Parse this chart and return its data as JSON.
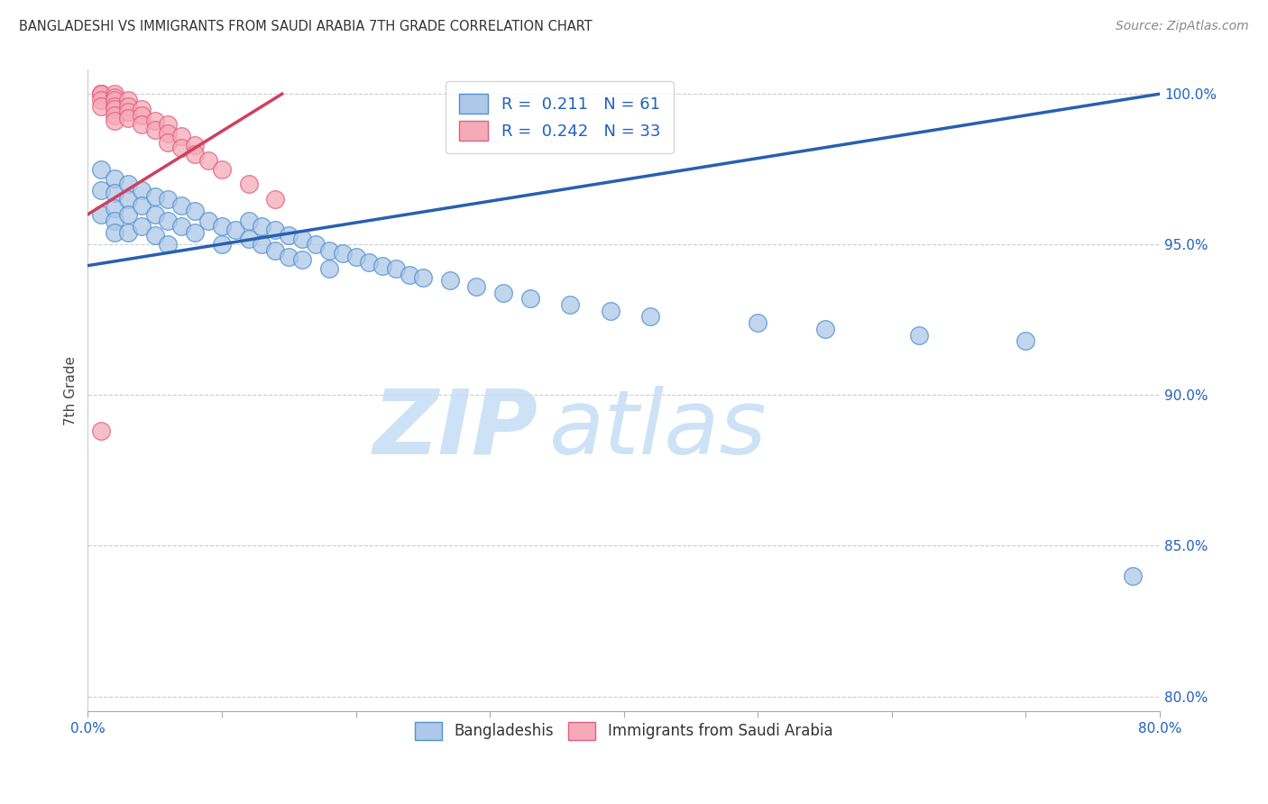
{
  "title": "BANGLADESHI VS IMMIGRANTS FROM SAUDI ARABIA 7TH GRADE CORRELATION CHART",
  "source": "Source: ZipAtlas.com",
  "ylabel": "7th Grade",
  "xlim": [
    0.0,
    0.8
  ],
  "ylim": [
    0.795,
    1.008
  ],
  "xticks": [
    0.0,
    0.1,
    0.2,
    0.3,
    0.4,
    0.5,
    0.6,
    0.7,
    0.8
  ],
  "xticklabels": [
    "0.0%",
    "",
    "",
    "",
    "",
    "",
    "",
    "",
    "80.0%"
  ],
  "yticks": [
    0.8,
    0.85,
    0.9,
    0.95,
    1.0
  ],
  "yticklabels": [
    "80.0%",
    "85.0%",
    "90.0%",
    "95.0%",
    "100.0%"
  ],
  "blue_R": "0.211",
  "blue_N": "61",
  "pink_R": "0.242",
  "pink_N": "33",
  "blue_color": "#adc8e8",
  "pink_color": "#f5aab8",
  "blue_edge_color": "#5090d0",
  "pink_edge_color": "#e06080",
  "blue_line_color": "#2860b0",
  "pink_line_color": "#d04060",
  "watermark_zip": "ZIP",
  "watermark_atlas": "atlas",
  "legend_label_blue": "Bangladeshis",
  "legend_label_pink": "Immigrants from Saudi Arabia",
  "blue_scatter_x": [
    0.01,
    0.01,
    0.01,
    0.02,
    0.02,
    0.02,
    0.02,
    0.02,
    0.03,
    0.03,
    0.03,
    0.03,
    0.04,
    0.04,
    0.04,
    0.05,
    0.05,
    0.05,
    0.06,
    0.06,
    0.06,
    0.07,
    0.07,
    0.08,
    0.08,
    0.09,
    0.1,
    0.1,
    0.11,
    0.12,
    0.12,
    0.13,
    0.13,
    0.14,
    0.14,
    0.15,
    0.15,
    0.16,
    0.16,
    0.17,
    0.18,
    0.18,
    0.19,
    0.2,
    0.21,
    0.22,
    0.23,
    0.24,
    0.25,
    0.27,
    0.29,
    0.31,
    0.33,
    0.36,
    0.39,
    0.42,
    0.5,
    0.55,
    0.62,
    0.7,
    0.78
  ],
  "blue_scatter_y": [
    0.975,
    0.968,
    0.96,
    0.972,
    0.967,
    0.962,
    0.958,
    0.954,
    0.97,
    0.965,
    0.96,
    0.954,
    0.968,
    0.963,
    0.956,
    0.966,
    0.96,
    0.953,
    0.965,
    0.958,
    0.95,
    0.963,
    0.956,
    0.961,
    0.954,
    0.958,
    0.956,
    0.95,
    0.955,
    0.958,
    0.952,
    0.956,
    0.95,
    0.955,
    0.948,
    0.953,
    0.946,
    0.952,
    0.945,
    0.95,
    0.948,
    0.942,
    0.947,
    0.946,
    0.944,
    0.943,
    0.942,
    0.94,
    0.939,
    0.938,
    0.936,
    0.934,
    0.932,
    0.93,
    0.928,
    0.926,
    0.924,
    0.922,
    0.92,
    0.918,
    0.84
  ],
  "pink_scatter_x": [
    0.01,
    0.01,
    0.01,
    0.01,
    0.01,
    0.02,
    0.02,
    0.02,
    0.02,
    0.02,
    0.02,
    0.02,
    0.03,
    0.03,
    0.03,
    0.03,
    0.04,
    0.04,
    0.04,
    0.05,
    0.05,
    0.06,
    0.06,
    0.06,
    0.07,
    0.07,
    0.08,
    0.08,
    0.09,
    0.1,
    0.12,
    0.14,
    0.01
  ],
  "pink_scatter_y": [
    1.0,
    1.0,
    1.0,
    0.998,
    0.996,
    1.0,
    0.999,
    0.998,
    0.996,
    0.995,
    0.993,
    0.991,
    0.998,
    0.996,
    0.994,
    0.992,
    0.995,
    0.993,
    0.99,
    0.991,
    0.988,
    0.99,
    0.987,
    0.984,
    0.986,
    0.982,
    0.983,
    0.98,
    0.978,
    0.975,
    0.97,
    0.965,
    0.888
  ],
  "blue_line_x0": 0.0,
  "blue_line_x1": 0.8,
  "blue_line_y0": 0.943,
  "blue_line_y1": 1.0,
  "pink_line_x0": 0.0,
  "pink_line_x1": 0.145,
  "pink_line_y0": 0.96,
  "pink_line_y1": 1.0
}
